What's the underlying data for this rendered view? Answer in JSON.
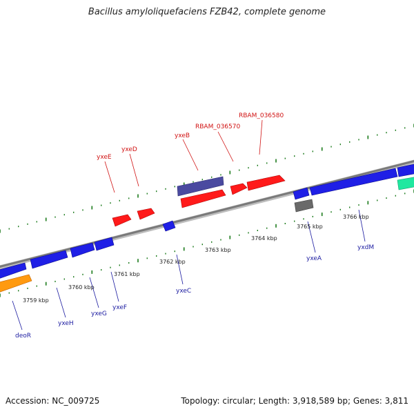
{
  "title": "Bacillus amyloliquefaciens FZB42, complete genome",
  "footer": {
    "accession": "Accession: NC_009725",
    "topology": "Topology: circular; Length: 3,918,589 bp; Genes: 3,811"
  },
  "kbp_labels": [
    "3759 kbp",
    "3760 kbp",
    "3761 kbp",
    "3762 kbp",
    "3763 kbp",
    "3764 kbp",
    "3765 kbp",
    "3766 kbp"
  ],
  "genes_forward": [
    "yxeE",
    "yxeD",
    "yxeB",
    "RBAM_036570",
    "RBAM_036580"
  ],
  "genes_reverse": [
    "deoR",
    "yxeH",
    "yxeG",
    "yxeF",
    "yxeC",
    "yxeA",
    "yxdM"
  ],
  "colors": {
    "forward_label": "#d01010",
    "reverse_label": "#1a1aa0",
    "backbone": "#8a8a8a",
    "tick": "#1a7a1a",
    "gene_red": "#ff1a1a",
    "gene_blue": "#1f1fe6",
    "gene_slate": "#4a4aa0",
    "gene_orange": "#ff9a10",
    "gene_teal": "#20e8a0",
    "gene_gray": "#6a6a6a"
  }
}
